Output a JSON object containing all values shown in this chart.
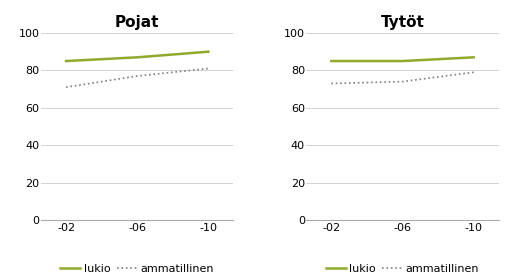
{
  "x_labels": [
    "-02",
    "-06",
    "-10"
  ],
  "x_positions": [
    0,
    1,
    2
  ],
  "pojat_lukio": [
    85,
    87,
    90
  ],
  "pojat_ammatillinen": [
    71,
    77,
    81
  ],
  "tytot_lukio": [
    85,
    85,
    87
  ],
  "tytot_ammatillinen": [
    73,
    74,
    79
  ],
  "title_pojat": "Pojat",
  "title_tytot": "Tytöt",
  "legend_lukio": "lukio",
  "legend_ammatillinen": "ammatillinen",
  "ylim": [
    0,
    100
  ],
  "yticks": [
    0,
    20,
    40,
    60,
    80,
    100
  ],
  "lukio_color": "#8faa2d",
  "ammatillinen_color": "#808080",
  "background_color": "#ffffff",
  "title_fontsize": 11,
  "legend_fontsize": 8,
  "tick_fontsize": 8
}
